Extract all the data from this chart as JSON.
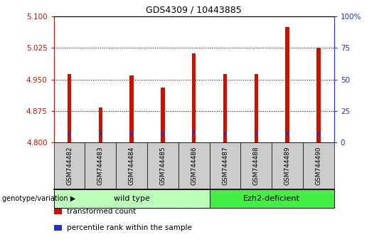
{
  "title": "GDS4309 / 10443885",
  "samples": [
    "GSM744482",
    "GSM744483",
    "GSM744484",
    "GSM744485",
    "GSM744486",
    "GSM744487",
    "GSM744488",
    "GSM744489",
    "GSM744490"
  ],
  "transformed_counts": [
    4.963,
    4.883,
    4.96,
    4.93,
    5.012,
    4.963,
    4.963,
    5.075,
    5.025
  ],
  "percentile_ranks": [
    7,
    7,
    7,
    7,
    8,
    7,
    7,
    7,
    7
  ],
  "ymin": 4.8,
  "ymax": 5.1,
  "y_ticks": [
    4.8,
    4.875,
    4.95,
    5.025,
    5.1
  ],
  "y2min": 0,
  "y2max": 100,
  "y2_ticks": [
    0,
    25,
    50,
    75,
    100
  ],
  "bar_color": "#cc1100",
  "percentile_color": "#2233cc",
  "bar_width": 0.12,
  "groups": [
    {
      "label": "wild type",
      "samples": [
        0,
        1,
        2,
        3,
        4
      ],
      "color": "#bbffbb"
    },
    {
      "label": "Ezh2-deficient",
      "samples": [
        5,
        6,
        7,
        8
      ],
      "color": "#44ee44"
    }
  ],
  "legend_items": [
    {
      "label": "transformed count",
      "color": "#cc1100"
    },
    {
      "label": "percentile rank within the sample",
      "color": "#2233cc"
    }
  ],
  "left_tick_color": "#cc1100",
  "right_tick_color": "#2233cc",
  "background_color": "#ffffff",
  "grid_color": "#000000",
  "xlabel_bg": "#cccccc",
  "title_fontsize": 9
}
